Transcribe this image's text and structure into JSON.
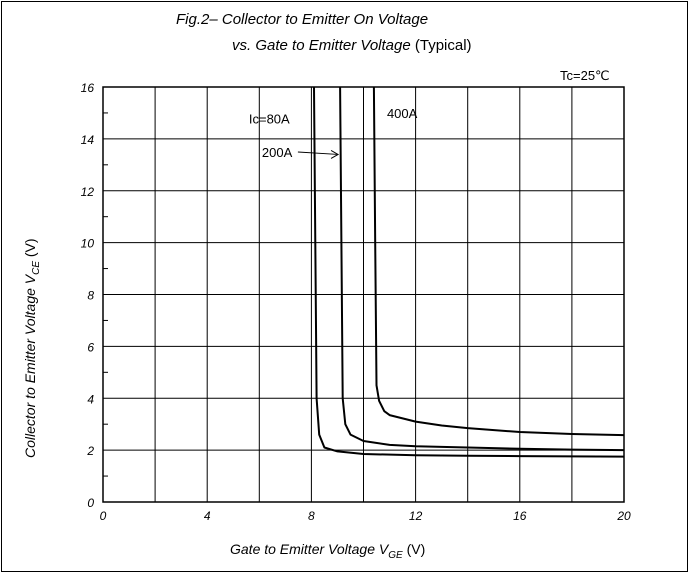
{
  "chart_data": {
    "type": "line",
    "title_line1": "Fig.2–  Collector to Emitter On Voltage",
    "title_line2_italic": "vs. Gate to Emitter Voltage",
    "title_line2_suffix": "(Typical)",
    "condition": "Tc=25℃",
    "xlabel_italic": "Gate to Emitter Voltage V",
    "xlabel_sub": "GE",
    "xlabel_unit": " (V)",
    "ylabel_italic": "Collector to Emitter Voltage V",
    "ylabel_sub": "CE",
    "ylabel_unit": " (V)",
    "xlim": [
      0,
      20
    ],
    "ylim": [
      0,
      16
    ],
    "x_ticks": [
      "0",
      "4",
      "8",
      "12",
      "16",
      "20"
    ],
    "y_ticks": [
      "0",
      "2",
      "4",
      "6",
      "8",
      "10",
      "12",
      "14",
      "16"
    ],
    "grid": true,
    "series": [
      {
        "name": "Ic=80A",
        "x": [
          8.1,
          8.15,
          8.2,
          8.3,
          8.5,
          9,
          10,
          12,
          14,
          16,
          18,
          20
        ],
        "y": [
          16,
          10,
          4,
          2.6,
          2.1,
          1.95,
          1.85,
          1.8,
          1.78,
          1.77,
          1.76,
          1.75
        ]
      },
      {
        "name": "200A",
        "x": [
          9.1,
          9.15,
          9.2,
          9.3,
          9.5,
          10,
          11,
          12,
          14,
          16,
          18,
          20
        ],
        "y": [
          16,
          10,
          4,
          3.0,
          2.6,
          2.35,
          2.2,
          2.15,
          2.1,
          2.05,
          2.02,
          2.0
        ]
      },
      {
        "name": "400A",
        "x": [
          10.4,
          10.45,
          10.5,
          10.6,
          10.8,
          11,
          12,
          13,
          14,
          16,
          18,
          20
        ],
        "y": [
          16,
          10,
          4.5,
          3.9,
          3.5,
          3.35,
          3.1,
          2.95,
          2.85,
          2.7,
          2.62,
          2.58
        ]
      }
    ],
    "annotations": [
      {
        "text": "Ic=80A",
        "x": 5.6,
        "y": 14.6
      },
      {
        "text": "200A",
        "x": 6.1,
        "y": 13.3,
        "arrow_to_x": 9.1,
        "arrow_to_y": 13.4
      },
      {
        "text": "400A",
        "x": 10.9,
        "y": 14.8
      }
    ]
  }
}
